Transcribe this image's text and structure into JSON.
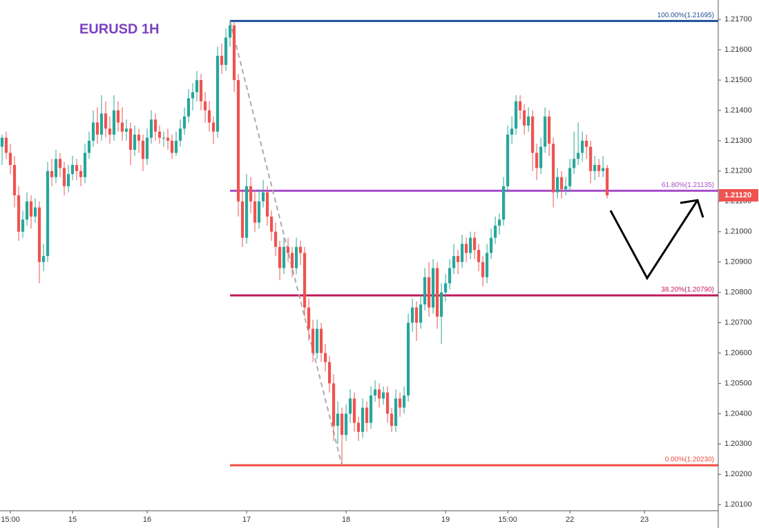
{
  "chart_data": {
    "type": "candlestick",
    "title": "EURUSD 1H",
    "up_color": "#26a69a",
    "down_color": "#ef5350",
    "ylim": [
      1.2008,
      1.21764
    ],
    "xlim": [
      -0.5,
      172.8
    ],
    "yticks": [
      {
        "value": 1.201,
        "label": "1.20100"
      },
      {
        "value": 1.202,
        "label": "1.20200"
      },
      {
        "value": 1.203,
        "label": "1.20300"
      },
      {
        "value": 1.204,
        "label": "1.20400"
      },
      {
        "value": 1.205,
        "label": "1.20500"
      },
      {
        "value": 1.206,
        "label": "1.20600"
      },
      {
        "value": 1.207,
        "label": "1.20700"
      },
      {
        "value": 1.208,
        "label": "1.20800"
      },
      {
        "value": 1.209,
        "label": "1.20900"
      },
      {
        "value": 1.21,
        "label": "1.21000"
      },
      {
        "value": 1.211,
        "label": "1.21100"
      },
      {
        "value": 1.212,
        "label": "1.21200"
      },
      {
        "value": 1.213,
        "label": "1.21300"
      },
      {
        "value": 1.214,
        "label": "1.21400"
      },
      {
        "value": 1.215,
        "label": "1.21500"
      },
      {
        "value": 1.216,
        "label": "1.21600"
      },
      {
        "value": 1.217,
        "label": "1.21700"
      }
    ],
    "xticks": [
      {
        "value": 2,
        "label": "15:00"
      },
      {
        "value": 17,
        "label": "15"
      },
      {
        "value": 35,
        "label": "16"
      },
      {
        "value": 59,
        "label": "17"
      },
      {
        "value": 83,
        "label": "18"
      },
      {
        "value": 107,
        "label": "19"
      },
      {
        "value": 122,
        "label": "15:00"
      },
      {
        "value": 137,
        "label": "22"
      },
      {
        "value": 155,
        "label": "23"
      }
    ],
    "levels": [
      {
        "label": "100.00%(1.21695)",
        "value": 1.21695,
        "color": "#1f4e9c"
      },
      {
        "label": "61.80%(1.21135)",
        "value": 1.21135,
        "color": "#a64dc9"
      },
      {
        "label": "38.20%(1.20790)",
        "value": 1.2079,
        "color": "#c2185b"
      },
      {
        "label": "0.00%(1.20230)",
        "value": 1.2023,
        "color": "#ef4b3f"
      }
    ],
    "last_price": {
      "value": 1.2112,
      "label": "1.21120"
    },
    "ohlc": [
      [
        1.2128,
        1.2132,
        1.2122,
        1.2131
      ],
      [
        1.2131,
        1.2133,
        1.2124,
        1.2126
      ],
      [
        1.2126,
        1.2129,
        1.2119,
        1.2122
      ],
      [
        1.2122,
        1.2125,
        1.2108,
        1.2112
      ],
      [
        1.2112,
        1.2115,
        1.2097,
        1.21
      ],
      [
        1.21,
        1.2107,
        1.2098,
        1.2104
      ],
      [
        1.2104,
        1.2113,
        1.2102,
        1.211
      ],
      [
        1.211,
        1.2112,
        1.2101,
        1.2105
      ],
      [
        1.2105,
        1.2111,
        1.2103,
        1.2108
      ],
      [
        1.2108,
        1.211,
        1.2083,
        1.209
      ],
      [
        1.209,
        1.2096,
        1.2087,
        1.2092
      ],
      [
        1.2092,
        1.2123,
        1.209,
        1.212
      ],
      [
        1.212,
        1.2124,
        1.2115,
        1.2118
      ],
      [
        1.2118,
        1.2127,
        1.2116,
        1.2124
      ],
      [
        1.2124,
        1.2126,
        1.2118,
        1.2121
      ],
      [
        1.2121,
        1.2123,
        1.2112,
        1.2115
      ],
      [
        1.2115,
        1.2122,
        1.2113,
        1.2119
      ],
      [
        1.2119,
        1.2125,
        1.2117,
        1.2122
      ],
      [
        1.2122,
        1.2124,
        1.2117,
        1.212
      ],
      [
        1.212,
        1.2122,
        1.2115,
        1.2118
      ],
      [
        1.2118,
        1.2129,
        1.2116,
        1.2126
      ],
      [
        1.2126,
        1.2133,
        1.2124,
        1.213
      ],
      [
        1.213,
        1.214,
        1.2128,
        1.2136
      ],
      [
        1.2136,
        1.2141,
        1.2129,
        1.2132
      ],
      [
        1.2132,
        1.2145,
        1.213,
        1.2139
      ],
      [
        1.2139,
        1.2143,
        1.2131,
        1.2134
      ],
      [
        1.2134,
        1.2138,
        1.2129,
        1.2132
      ],
      [
        1.2132,
        1.2145,
        1.213,
        1.214
      ],
      [
        1.214,
        1.2143,
        1.2133,
        1.2136
      ],
      [
        1.2136,
        1.2141,
        1.213,
        1.2133
      ],
      [
        1.2133,
        1.2137,
        1.213,
        1.2134
      ],
      [
        1.2134,
        1.2136,
        1.2122,
        1.2127
      ],
      [
        1.2127,
        1.2135,
        1.2125,
        1.2132
      ],
      [
        1.2132,
        1.2134,
        1.2126,
        1.213
      ],
      [
        1.213,
        1.2132,
        1.212,
        1.2124
      ],
      [
        1.2124,
        1.2134,
        1.2122,
        1.2131
      ],
      [
        1.2131,
        1.214,
        1.2129,
        1.2137
      ],
      [
        1.2137,
        1.2139,
        1.213,
        1.2133
      ],
      [
        1.2133,
        1.2135,
        1.2129,
        1.2131
      ],
      [
        1.2131,
        1.2133,
        1.2128,
        1.2131
      ],
      [
        1.2131,
        1.2134,
        1.2127,
        1.213
      ],
      [
        1.213,
        1.2132,
        1.2124,
        1.2126
      ],
      [
        1.2126,
        1.2133,
        1.2125,
        1.213
      ],
      [
        1.213,
        1.2137,
        1.2128,
        1.2134
      ],
      [
        1.2134,
        1.2141,
        1.2132,
        1.2138
      ],
      [
        1.2138,
        1.2147,
        1.2136,
        1.2144
      ],
      [
        1.2144,
        1.2149,
        1.214,
        1.2146
      ],
      [
        1.2146,
        1.2153,
        1.2143,
        1.215
      ],
      [
        1.215,
        1.2152,
        1.214,
        1.2143
      ],
      [
        1.2143,
        1.2146,
        1.2136,
        1.214
      ],
      [
        1.214,
        1.2143,
        1.2133,
        1.2136
      ],
      [
        1.2136,
        1.2138,
        1.2129,
        1.2133
      ],
      [
        1.2133,
        1.2161,
        1.2131,
        1.2158
      ],
      [
        1.2158,
        1.2162,
        1.2152,
        1.2155
      ],
      [
        1.2155,
        1.2167,
        1.2153,
        1.2164
      ],
      [
        1.2164,
        1.21695,
        1.2161,
        1.2168
      ],
      [
        1.2168,
        1.2169,
        1.2146,
        1.215
      ],
      [
        1.215,
        1.2152,
        1.2105,
        1.211
      ],
      [
        1.211,
        1.2114,
        1.2095,
        1.2098
      ],
      [
        1.2098,
        1.2119,
        1.2096,
        1.2115
      ],
      [
        1.2115,
        1.2118,
        1.2106,
        1.211
      ],
      [
        1.211,
        1.2113,
        1.21,
        1.2103
      ],
      [
        1.2103,
        1.2114,
        1.2101,
        1.211
      ],
      [
        1.211,
        1.2117,
        1.2108,
        1.2113
      ],
      [
        1.2113,
        1.2115,
        1.2102,
        1.2105
      ],
      [
        1.2105,
        1.2107,
        1.2097,
        1.21
      ],
      [
        1.21,
        1.2103,
        1.2092,
        1.2095
      ],
      [
        1.2095,
        1.2097,
        1.2084,
        1.2088
      ],
      [
        1.2088,
        1.2098,
        1.2086,
        1.2095
      ],
      [
        1.2095,
        1.2098,
        1.209,
        1.2093
      ],
      [
        1.2093,
        1.2095,
        1.2085,
        1.2088
      ],
      [
        1.2088,
        1.2098,
        1.2086,
        1.2095
      ],
      [
        1.2095,
        1.2097,
        1.2089,
        1.2093
      ],
      [
        1.2093,
        1.2095,
        1.2072,
        1.2075
      ],
      [
        1.2075,
        1.2078,
        1.2064,
        1.2068
      ],
      [
        1.2068,
        1.2071,
        1.2057,
        1.206
      ],
      [
        1.206,
        1.2071,
        1.2058,
        1.2068
      ],
      [
        1.2068,
        1.207,
        1.2057,
        1.206
      ],
      [
        1.206,
        1.2063,
        1.2054,
        1.2057
      ],
      [
        1.2057,
        1.2059,
        1.2047,
        1.205
      ],
      [
        1.205,
        1.2053,
        1.2031,
        1.2036
      ],
      [
        1.2036,
        1.2044,
        1.203,
        1.204
      ],
      [
        1.204,
        1.2042,
        1.2023,
        1.2033
      ],
      [
        1.2033,
        1.2043,
        1.2031,
        1.204
      ],
      [
        1.204,
        1.2048,
        1.2037,
        1.2045
      ],
      [
        1.2045,
        1.2047,
        1.2034,
        1.2037
      ],
      [
        1.2037,
        1.2039,
        1.2031,
        1.2034
      ],
      [
        1.2034,
        1.2045,
        1.2032,
        1.2042
      ],
      [
        1.2042,
        1.2044,
        1.2034,
        1.2037
      ],
      [
        1.2037,
        1.2049,
        1.2035,
        1.2046
      ],
      [
        1.2046,
        1.2051,
        1.2044,
        1.2048
      ],
      [
        1.2048,
        1.205,
        1.2042,
        1.2045
      ],
      [
        1.2045,
        1.2049,
        1.2043,
        1.2047
      ],
      [
        1.2047,
        1.2049,
        1.2037,
        1.204
      ],
      [
        1.204,
        1.2042,
        1.2034,
        1.2036
      ],
      [
        1.2036,
        1.2048,
        1.2034,
        1.2045
      ],
      [
        1.2045,
        1.2047,
        1.2039,
        1.2042
      ],
      [
        1.2042,
        1.2049,
        1.204,
        1.2046
      ],
      [
        1.2046,
        1.2073,
        1.2044,
        1.207
      ],
      [
        1.207,
        1.2078,
        1.2067,
        1.2075
      ],
      [
        1.2075,
        1.2077,
        1.2064,
        1.207
      ],
      [
        1.207,
        1.2079,
        1.2068,
        1.2076
      ],
      [
        1.2076,
        1.2088,
        1.2074,
        1.2085
      ],
      [
        1.2085,
        1.209,
        1.2072,
        1.2075
      ],
      [
        1.2075,
        1.2091,
        1.2073,
        1.2088
      ],
      [
        1.2088,
        1.209,
        1.2068,
        1.2072
      ],
      [
        1.2072,
        1.2083,
        1.2063,
        1.208
      ],
      [
        1.208,
        1.2086,
        1.2077,
        1.2083
      ],
      [
        1.2083,
        1.2091,
        1.2081,
        1.2088
      ],
      [
        1.2088,
        1.2096,
        1.2086,
        1.2092
      ],
      [
        1.2092,
        1.2094,
        1.2086,
        1.209
      ],
      [
        1.209,
        1.2099,
        1.2088,
        1.2096
      ],
      [
        1.2096,
        1.2098,
        1.209,
        1.2093
      ],
      [
        1.2093,
        1.21,
        1.2091,
        1.2098
      ],
      [
        1.2098,
        1.21,
        1.2091,
        1.2094
      ],
      [
        1.2094,
        1.2096,
        1.2087,
        1.209
      ],
      [
        1.209,
        1.2092,
        1.2082,
        1.2085
      ],
      [
        1.2085,
        1.2096,
        1.2083,
        1.2093
      ],
      [
        1.2093,
        1.2101,
        1.2091,
        1.2098
      ],
      [
        1.2098,
        1.2105,
        1.2096,
        1.2102
      ],
      [
        1.2102,
        1.2106,
        1.2099,
        1.2104
      ],
      [
        1.2104,
        1.2118,
        1.2102,
        1.2115
      ],
      [
        1.2115,
        1.2135,
        1.2113,
        1.2132
      ],
      [
        1.2132,
        1.2138,
        1.2129,
        1.2134
      ],
      [
        1.2134,
        1.2145,
        1.2132,
        1.2143
      ],
      [
        1.2143,
        1.2145,
        1.2137,
        1.214
      ],
      [
        1.214,
        1.2142,
        1.2132,
        1.2135
      ],
      [
        1.2135,
        1.2141,
        1.2133,
        1.2138
      ],
      [
        1.2138,
        1.214,
        1.212,
        1.2126
      ],
      [
        1.2126,
        1.2129,
        1.2117,
        1.2121
      ],
      [
        1.2121,
        1.2131,
        1.2119,
        1.2128
      ],
      [
        1.2128,
        1.2141,
        1.2126,
        1.2138
      ],
      [
        1.2138,
        1.214,
        1.2125,
        1.2129
      ],
      [
        1.2129,
        1.2131,
        1.2108,
        1.2113
      ],
      [
        1.2113,
        1.2121,
        1.2111,
        1.2118
      ],
      [
        1.2118,
        1.212,
        1.2111,
        1.2114
      ],
      [
        1.2114,
        1.2118,
        1.2112,
        1.2115
      ],
      [
        1.2115,
        1.2124,
        1.2113,
        1.2121
      ],
      [
        1.2121,
        1.2133,
        1.2119,
        1.2124
      ],
      [
        1.2124,
        1.2136,
        1.2122,
        1.2126
      ],
      [
        1.2126,
        1.2133,
        1.2123,
        1.213
      ],
      [
        1.213,
        1.2132,
        1.2124,
        1.2128
      ],
      [
        1.2128,
        1.213,
        1.2116,
        1.212
      ],
      [
        1.212,
        1.2125,
        1.2117,
        1.2122
      ],
      [
        1.2122,
        1.2124,
        1.2118,
        1.212
      ],
      [
        1.212,
        1.2125,
        1.2118,
        1.2121
      ],
      [
        1.2121,
        1.2122,
        1.2111,
        1.2112
      ]
    ]
  }
}
